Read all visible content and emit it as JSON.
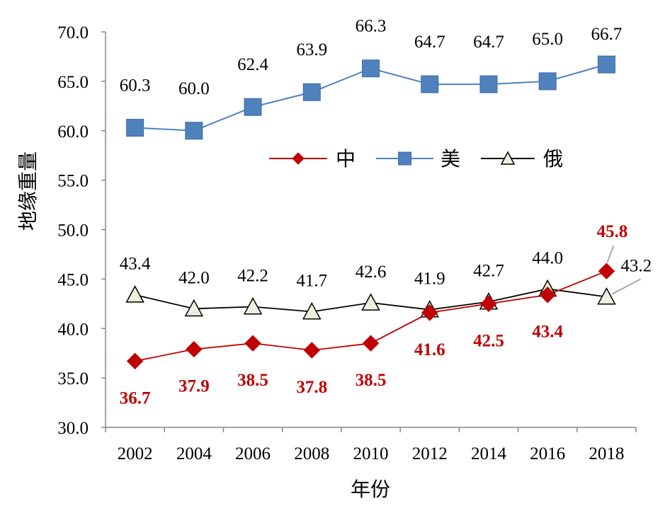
{
  "chart_data": {
    "type": "line",
    "xlabel": "年份",
    "ylabel": "地缘重量",
    "ylim": [
      30.0,
      70.0
    ],
    "yticks": [
      "30.0",
      "35.0",
      "40.0",
      "45.0",
      "50.0",
      "55.0",
      "60.0",
      "65.0",
      "70.0"
    ],
    "categories": [
      "2002",
      "2004",
      "2006",
      "2008",
      "2010",
      "2012",
      "2014",
      "2016",
      "2018"
    ],
    "legend_position": "inside-upper-center",
    "grid": false,
    "series": [
      {
        "name": "中",
        "color": "#C00000",
        "marker": "diamond",
        "label_style": "bold",
        "values": [
          36.7,
          37.9,
          38.5,
          37.8,
          38.5,
          41.6,
          42.5,
          43.4,
          45.8
        ],
        "labels": [
          "36.7",
          "37.9",
          "38.5",
          "37.8",
          "38.5",
          "41.6",
          "42.5",
          "43.4",
          "45.8"
        ]
      },
      {
        "name": "美",
        "color": "#4F81BD",
        "marker": "square",
        "label_style": "normal",
        "values": [
          60.3,
          60.0,
          62.4,
          63.9,
          66.3,
          64.7,
          64.7,
          65.0,
          66.7
        ],
        "labels": [
          "60.3",
          "60.0",
          "62.4",
          "63.9",
          "66.3",
          "64.7",
          "64.7",
          "65.0",
          "66.7"
        ]
      },
      {
        "name": "俄",
        "color": "#000000",
        "marker": "triangle",
        "marker_fill": "#EBF1DE",
        "label_style": "normal",
        "values": [
          43.4,
          42.0,
          42.2,
          41.7,
          42.6,
          41.9,
          42.7,
          44.0,
          43.2
        ],
        "labels": [
          "43.4",
          "42.0",
          "42.2",
          "41.7",
          "42.6",
          "41.9",
          "42.7",
          "44.0",
          "43.2"
        ]
      }
    ]
  }
}
